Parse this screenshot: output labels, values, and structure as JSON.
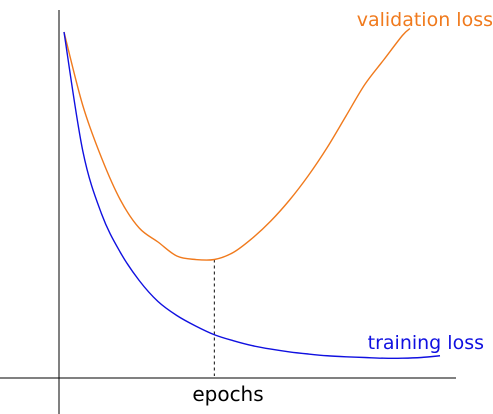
{
  "chart_data": {
    "type": "line",
    "xlabel": "epochs",
    "ylabel": "",
    "xlim": [
      0,
      100
    ],
    "ylim": [
      0,
      100
    ],
    "grid": false,
    "legend": "inline labels at curve ends",
    "series": [
      {
        "name": "validation loss",
        "color": "#f07a1d",
        "x": [
          0,
          5,
          10,
          15,
          20,
          25,
          30,
          35,
          40,
          45,
          50,
          55,
          60,
          65,
          70,
          75,
          80,
          85,
          90,
          92
        ],
        "y": [
          96,
          75,
          60,
          48,
          40,
          36,
          32,
          31,
          31,
          33,
          37,
          42,
          48,
          55,
          63,
          72,
          81,
          88,
          95,
          97
        ]
      },
      {
        "name": "training loss",
        "color": "#1010e0",
        "x": [
          0,
          5,
          10,
          15,
          20,
          25,
          30,
          35,
          40,
          45,
          50,
          55,
          60,
          65,
          70,
          75,
          80,
          85,
          90,
          95,
          100
        ],
        "y": [
          96,
          62,
          44,
          33,
          25,
          19,
          15,
          12,
          9.5,
          7.8,
          6.4,
          5.4,
          4.6,
          4.0,
          3.5,
          3.2,
          3.0,
          2.8,
          2.8,
          3.0,
          3.5
        ]
      }
    ],
    "annotations": [
      {
        "type": "vertical-dashed-line",
        "x": 40,
        "note_value": "minimum of validation loss"
      }
    ]
  }
}
